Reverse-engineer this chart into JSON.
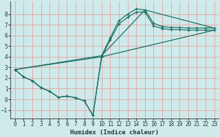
{
  "xlabel": "Humidex (Indice chaleur)",
  "bg_color": "#ceeaea",
  "plot_bg_color": "#ceeaea",
  "line_color": "#1a6e64",
  "grid_color": "#e8a0a0",
  "xlim": [
    -0.5,
    23.5
  ],
  "ylim": [
    -1.8,
    9.2
  ],
  "xticks": [
    0,
    1,
    2,
    3,
    4,
    5,
    6,
    7,
    8,
    9,
    10,
    11,
    12,
    13,
    14,
    15,
    16,
    17,
    18,
    19,
    20,
    21,
    22,
    23
  ],
  "yticks": [
    -1,
    0,
    1,
    2,
    3,
    4,
    5,
    6,
    7,
    8
  ],
  "line1_x": [
    0,
    1,
    2,
    3,
    4,
    5,
    6,
    7,
    8,
    9,
    10,
    11,
    12,
    13,
    14,
    15,
    16,
    17,
    18,
    19,
    20,
    21,
    22,
    23
  ],
  "line1_y": [
    2.8,
    2.1,
    1.75,
    1.1,
    0.75,
    0.2,
    0.3,
    0.15,
    -0.15,
    -1.5,
    4.1,
    5.8,
    7.4,
    8.0,
    8.5,
    8.4,
    7.15,
    6.85,
    6.75,
    6.75,
    6.7,
    6.7,
    6.7,
    6.7
  ],
  "line2_x": [
    0,
    1,
    2,
    3,
    4,
    5,
    6,
    7,
    8,
    9,
    10,
    11,
    12,
    13,
    14,
    15,
    16,
    17,
    18,
    19,
    20,
    21,
    22,
    23
  ],
  "line2_y": [
    2.8,
    2.1,
    1.75,
    1.1,
    0.75,
    0.2,
    0.3,
    0.15,
    -0.15,
    -1.5,
    4.0,
    5.6,
    7.1,
    7.7,
    8.2,
    8.2,
    6.9,
    6.65,
    6.55,
    6.55,
    6.5,
    6.5,
    6.5,
    6.5
  ],
  "line3_x": [
    0,
    10,
    15,
    23
  ],
  "line3_y": [
    2.8,
    4.1,
    8.4,
    6.7
  ],
  "line4_x": [
    0,
    10,
    23
  ],
  "line4_y": [
    2.8,
    4.0,
    6.5
  ]
}
